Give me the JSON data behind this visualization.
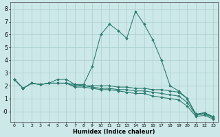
{
  "xlabel": "Humidex (Indice chaleur)",
  "x": [
    0,
    1,
    2,
    3,
    4,
    5,
    6,
    7,
    8,
    9,
    10,
    11,
    12,
    13,
    14,
    15,
    16,
    17,
    18,
    19,
    20,
    21,
    22,
    23
  ],
  "series1": [
    2.5,
    1.8,
    2.2,
    2.1,
    2.2,
    2.5,
    2.5,
    2.1,
    2.1,
    3.5,
    6.0,
    6.8,
    6.3,
    5.7,
    7.8,
    6.8,
    5.6,
    4.0,
    2.0,
    1.6,
    1.0,
    -0.3,
    -0.1,
    -0.5
  ],
  "series2": [
    2.5,
    1.8,
    2.2,
    2.1,
    2.2,
    2.2,
    2.2,
    2.1,
    2.0,
    2.0,
    2.0,
    2.0,
    1.9,
    1.9,
    1.8,
    1.8,
    1.7,
    1.7,
    1.6,
    1.5,
    1.0,
    -0.2,
    -0.1,
    -0.4
  ],
  "series3": [
    2.5,
    1.8,
    2.2,
    2.1,
    2.2,
    2.2,
    2.2,
    2.0,
    2.0,
    1.9,
    1.8,
    1.8,
    1.7,
    1.7,
    1.6,
    1.6,
    1.5,
    1.4,
    1.3,
    1.2,
    0.7,
    -0.3,
    -0.2,
    -0.5
  ],
  "series4": [
    2.5,
    1.8,
    2.2,
    2.1,
    2.2,
    2.2,
    2.2,
    1.9,
    1.9,
    1.8,
    1.7,
    1.7,
    1.6,
    1.5,
    1.4,
    1.4,
    1.2,
    1.1,
    1.0,
    0.9,
    0.4,
    -0.4,
    -0.3,
    -0.6
  ],
  "line_color": "#2e7d72",
  "bg_color": "#cce8e8",
  "grid_color": "#aacece",
  "ylim": [
    -0.8,
    8.5
  ],
  "xlim": [
    -0.5,
    23.5
  ],
  "yticks": [
    0,
    1,
    2,
    3,
    4,
    5,
    6,
    7,
    8
  ],
  "ytick_labels": [
    "-0",
    "1",
    "2",
    "3",
    "4",
    "5",
    "6",
    "7",
    "8"
  ],
  "xticks": [
    0,
    1,
    2,
    3,
    4,
    5,
    6,
    7,
    8,
    9,
    10,
    11,
    12,
    13,
    14,
    15,
    16,
    17,
    18,
    19,
    20,
    21,
    22,
    23
  ],
  "xtick_labels": [
    "0",
    "1",
    "2",
    "3",
    "4",
    "5",
    "6",
    "7",
    "8",
    "9",
    "10",
    "11",
    "12",
    "13",
    "14",
    "15",
    "16",
    "17",
    "18",
    "19",
    "20",
    "21",
    "22",
    "23"
  ],
  "marker": "D",
  "markersize": 2.0,
  "linewidth": 0.8
}
